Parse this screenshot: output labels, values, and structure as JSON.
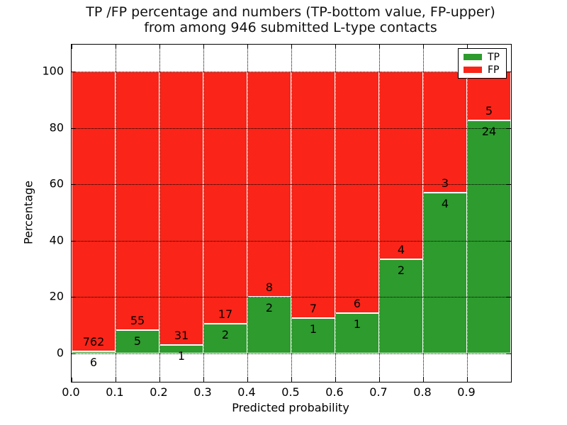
{
  "title": {
    "line1": "TP /FP percentage and numbers (TP-bottom value, FP-upper)",
    "line2": "from among 946 submitted L-type contacts"
  },
  "axes": {
    "xlabel": "Predicted probability",
    "ylabel": "Percentage",
    "xtick_labels": [
      "0.0",
      "0.1",
      "0.2",
      "0.3",
      "0.4",
      "0.5",
      "0.6",
      "0.7",
      "0.8",
      "0.9"
    ],
    "ytick_labels": [
      "0",
      "20",
      "40",
      "60",
      "80",
      "100"
    ],
    "ytick_values": [
      0,
      20,
      40,
      60,
      80,
      100
    ]
  },
  "legend": {
    "entries": [
      {
        "label": "TP",
        "color": "#2d9b2d"
      },
      {
        "label": "FP",
        "color": "#fa2418"
      }
    ]
  },
  "colors": {
    "tp": "#2d9b2d",
    "fp": "#fa2418",
    "bar_edge": "#ffffff",
    "grid": "#000000",
    "text": "#000000"
  },
  "chart_data": {
    "type": "bar",
    "stacked": true,
    "normalized": "each bar stacks to 100%",
    "title": "TP /FP percentage and numbers (TP-bottom value, FP-upper) from among 946 submitted L-type contacts",
    "xlabel": "Predicted probability",
    "ylabel": "Percentage",
    "total_contacts": 946,
    "bin_edges": [
      0.0,
      0.1,
      0.2,
      0.3,
      0.4,
      0.5,
      0.6,
      0.7,
      0.8,
      0.9,
      1.0
    ],
    "categories": [
      "0.0-0.1",
      "0.1-0.2",
      "0.2-0.3",
      "0.3-0.4",
      "0.4-0.5",
      "0.5-0.6",
      "0.6-0.7",
      "0.7-0.8",
      "0.8-0.9",
      "0.9-1.0"
    ],
    "series": [
      {
        "name": "TP",
        "position": "bottom",
        "counts": [
          6,
          5,
          1,
          2,
          2,
          1,
          1,
          2,
          4,
          24
        ],
        "percent": [
          0.78,
          8.33,
          3.13,
          10.53,
          20.0,
          12.5,
          14.29,
          33.33,
          57.14,
          82.76
        ]
      },
      {
        "name": "FP",
        "position": "top",
        "counts": [
          762,
          55,
          31,
          17,
          8,
          7,
          6,
          4,
          3,
          5
        ],
        "percent": [
          99.22,
          91.67,
          96.87,
          89.47,
          80.0,
          87.5,
          85.71,
          66.67,
          42.86,
          17.24
        ]
      }
    ],
    "xlim": [
      0.0,
      1.0
    ],
    "ylim": [
      -10,
      110
    ],
    "grid": "dotted, both axes",
    "legend_position": "upper right"
  }
}
